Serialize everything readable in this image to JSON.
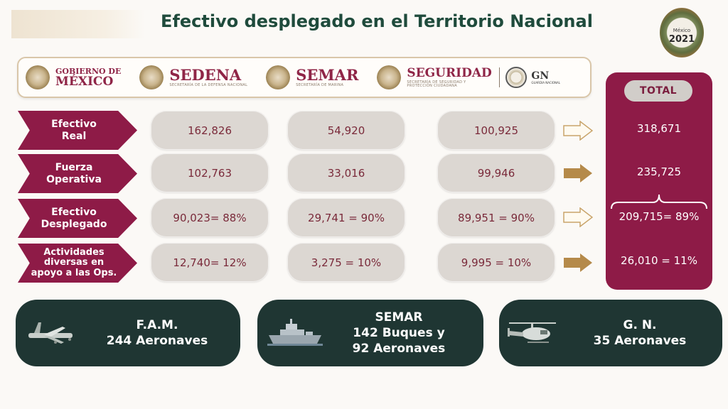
{
  "header": {
    "title": "Efectivo desplegado en el Territorio Nacional",
    "anniversary_logo": {
      "small_text": "México",
      "year": "2021"
    }
  },
  "logos": {
    "gobierno": {
      "line1": "GOBIERNO DE",
      "line2": "MÉXICO"
    },
    "sedena": {
      "name": "SEDENA",
      "subtitle": "SECRETARÍA DE LA DEFENSA NACIONAL"
    },
    "semar": {
      "name": "SEMAR",
      "subtitle": "SECRETARÍA DE MARINA"
    },
    "seguridad": {
      "name": "SEGURIDAD",
      "subtitle": "SECRETARÍA DE SEGURIDAD Y PROTECCIÓN CIUDADANA"
    },
    "gn": {
      "name": "GN",
      "subtitle": "GUARDIA NACIONAL"
    }
  },
  "table": {
    "total_label": "TOTAL",
    "rows": [
      {
        "label_line1": "Efectivo",
        "label_line2": "Real",
        "label_line3": "",
        "sedena": "162,826",
        "semar": "54,920",
        "seguridad": "100,925",
        "total": "318,671"
      },
      {
        "label_line1": "Fuerza",
        "label_line2": "Operativa",
        "label_line3": "",
        "sedena": "102,763",
        "semar": "33,016",
        "seguridad": "99,946",
        "total": "235,725"
      },
      {
        "label_line1": "Efectivo",
        "label_line2": "Desplegado",
        "label_line3": "",
        "sedena": "90,023= 88%",
        "semar": "29,741 = 90%",
        "seguridad": "89,951 = 90%",
        "total": "209,715= 89%"
      },
      {
        "label_line1": "Actividades",
        "label_line2": "diversas en",
        "label_line3": "apoyo a las Ops.",
        "sedena": "12,740= 12%",
        "semar": "3,275 = 10%",
        "seguridad": "9,995 = 10%",
        "total": "26,010 = 11%"
      }
    ]
  },
  "fleets": [
    {
      "line1": "F.A.M.",
      "line2": "244 Aeronaves",
      "line3": "",
      "icon": "airplane-icon"
    },
    {
      "line1": "SEMAR",
      "line2": "142 Buques y",
      "line3": "92 Aeronaves",
      "icon": "ship-icon"
    },
    {
      "line1": "G. N.",
      "line2": "35 Aeronaves",
      "line3": "",
      "icon": "helicopter-icon"
    }
  ],
  "colors": {
    "title_green": "#1f4b3c",
    "maroon": "#8e1b47",
    "cell_gray": "#dcd7d2",
    "fleet_dark": "#1f3633",
    "arrow_gold": "#b58a4a"
  }
}
